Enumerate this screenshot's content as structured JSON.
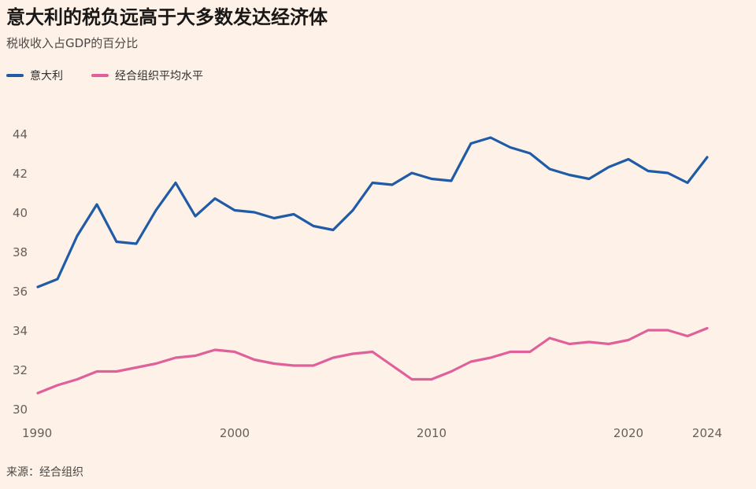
{
  "header": {
    "title": "意大利的税负远高于大多数发达经济体",
    "subtitle": "税收收入占GDP的百分比"
  },
  "source": "来源：经合组织",
  "colors": {
    "background": "#fdf1e8",
    "italy": "#1f5ba6",
    "oecd": "#e0609b"
  },
  "chart_data": {
    "type": "line",
    "title": "意大利的税负远高于大多数发达经济体",
    "subtitle": "税收收入占GDP的百分比",
    "xlabel": "",
    "ylabel": "",
    "xlim": [
      1990,
      2024
    ],
    "ylim": [
      30,
      44
    ],
    "x_ticks": [
      1990,
      2000,
      2010,
      2020,
      2024
    ],
    "y_ticks": [
      30,
      32,
      34,
      36,
      38,
      40,
      42,
      44
    ],
    "grid": false,
    "legend_position": "top-left",
    "x": [
      1990,
      1991,
      1992,
      1993,
      1994,
      1995,
      1996,
      1997,
      1998,
      1999,
      2000,
      2001,
      2002,
      2003,
      2004,
      2005,
      2006,
      2007,
      2008,
      2009,
      2010,
      2011,
      2012,
      2013,
      2014,
      2015,
      2016,
      2017,
      2018,
      2019,
      2020,
      2021,
      2022,
      2023,
      2024
    ],
    "series": [
      {
        "name": "意大利",
        "color": "#1f5ba6",
        "values": [
          36.2,
          36.6,
          38.8,
          40.4,
          38.5,
          38.4,
          40.1,
          41.5,
          39.8,
          40.7,
          40.1,
          40.0,
          39.7,
          39.9,
          39.3,
          39.1,
          40.1,
          41.5,
          41.4,
          42.0,
          41.7,
          41.6,
          43.5,
          43.8,
          43.3,
          43.0,
          42.2,
          41.9,
          41.7,
          42.3,
          42.7,
          42.1,
          42.0,
          41.5,
          42.8
        ]
      },
      {
        "name": "经合组织平均水平",
        "color": "#e0609b",
        "values": [
          30.8,
          31.2,
          31.5,
          31.9,
          31.9,
          32.1,
          32.3,
          32.6,
          32.7,
          33.0,
          32.9,
          32.5,
          32.3,
          32.2,
          32.2,
          32.6,
          32.8,
          32.9,
          32.2,
          31.5,
          31.5,
          31.9,
          32.4,
          32.6,
          32.9,
          32.9,
          33.6,
          33.3,
          33.4,
          33.3,
          33.5,
          34.0,
          34.0,
          33.7,
          34.1
        ]
      }
    ]
  }
}
